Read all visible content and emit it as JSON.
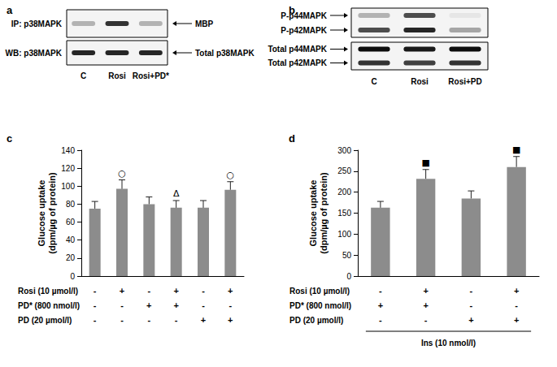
{
  "blots": [
    {
      "panel": "a",
      "lanes": [
        "C",
        "Rosi",
        "Rosi+PD*"
      ],
      "boxes": [
        {
          "label": "IP: p38MAPK",
          "bands": [
            {
              "label": "MBP",
              "intensity": [
                0.3,
                0.8,
                0.3
              ]
            }
          ]
        },
        {
          "label": "WB: p38MAPK",
          "bands": [
            {
              "label": "Total p38MAPK",
              "intensity": [
                0.85,
                0.85,
                0.85
              ]
            }
          ]
        }
      ]
    },
    {
      "panel": "b",
      "lanes": [
        "C",
        "Rosi",
        "Rosi+PD"
      ],
      "boxes": [
        {
          "bands": [
            {
              "label": "P-p44MAPK",
              "intensity": [
                0.3,
                0.7,
                0.1
              ]
            },
            {
              "label": "P-p42MAPK",
              "intensity": [
                0.7,
                0.85,
                0.35
              ]
            }
          ]
        },
        {
          "bands": [
            {
              "label": "Total p44MAPK",
              "intensity": [
                0.95,
                0.9,
                0.95
              ]
            },
            {
              "label": "Total p42MAPK",
              "intensity": [
                0.8,
                0.75,
                0.8
              ]
            }
          ]
        }
      ]
    }
  ],
  "chart_data": [
    {
      "type": "bar",
      "title": "c",
      "ylabel": "Glucose uptake\n(dpm/µg of protein)",
      "categories": [
        null,
        null,
        null,
        null,
        null,
        null
      ],
      "values": [
        75,
        97,
        80,
        76,
        76,
        96
      ],
      "errors": [
        8,
        10,
        8,
        8,
        8,
        9
      ],
      "annotations": [
        null,
        "○",
        null,
        "Δ",
        null,
        "○"
      ],
      "conditions": [
        {
          "label": "Rosi (10 µmol/l)",
          "values": [
            "-",
            "+",
            "-",
            "+",
            "-",
            "+"
          ]
        },
        {
          "label": "PD* (800 nmol/l)",
          "values": [
            "-",
            "-",
            "+",
            "+",
            "-",
            "-"
          ]
        },
        {
          "label": "PD (20 µmol/l)",
          "values": [
            "-",
            "-",
            "-",
            "-",
            "+",
            "+"
          ]
        }
      ],
      "color": "#8c8c8c",
      "ylim": [
        0,
        140
      ],
      "yticks": [
        0,
        20,
        40,
        60,
        80,
        100,
        120,
        140
      ],
      "grid": false
    },
    {
      "type": "bar",
      "title": "d",
      "ylabel": "Glucose uptake\n(dpm/µg of protein)",
      "categories": [
        null,
        null,
        null,
        null
      ],
      "values": [
        163,
        232,
        185,
        260
      ],
      "errors": [
        15,
        22,
        18,
        25
      ],
      "annotations": [
        null,
        "■",
        null,
        "■"
      ],
      "conditions": [
        {
          "label": "Rosi (10 µmol/l)",
          "values": [
            "-",
            "+",
            "-",
            "+"
          ]
        },
        {
          "label": "PD* (800 nmol/l)",
          "values": [
            "+",
            "+",
            "-",
            "-"
          ]
        },
        {
          "label": "PD (20 µmol/l)",
          "values": [
            "-",
            "-",
            "+",
            "+"
          ]
        }
      ],
      "footer": "Ins (10 nmol/l)",
      "color": "#8c8c8c",
      "ylim": [
        0,
        300
      ],
      "yticks": [
        0,
        50,
        100,
        150,
        200,
        250,
        300
      ],
      "grid": false
    }
  ]
}
